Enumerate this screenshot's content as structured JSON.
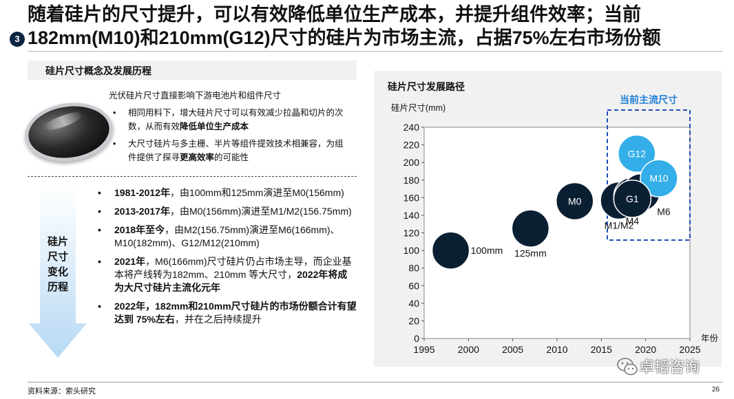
{
  "header": {
    "title_line1": "随着硅片的尺寸提升，可以有效降低单位生产成本，并提升组件效率；当前",
    "title_line2": "182mm(M10)和210mm(G12)尺寸的硅片为市场主流，占据75%左右市场份额",
    "badge": "3"
  },
  "left": {
    "section_title": "硅片尺寸概念及发展历程",
    "intro": "光伏硅片尺寸直接影响下游电池片和组件尺寸",
    "bullets": [
      {
        "pre": "相同用料下，增大硅片尺寸可以有效减少拉晶和切片的次数，从而有效",
        "bold": "降低单位生产成本",
        "post": ""
      },
      {
        "pre": "大尺寸硅片与多主栅、半片等组件提效技术相兼容，为组件提供了探寻",
        "bold": "更高效率",
        "post": "的可能性"
      }
    ],
    "history_label": "硅片尺寸变化历程",
    "history": [
      {
        "bold": "1981-2012年",
        "text": "，由100mm和125mm演进至M0(156mm)",
        "bold2": "",
        "text2": ""
      },
      {
        "bold": "2013-2017年",
        "text": "，由M0(156mm)演进至M1/M2(156.75mm)",
        "bold2": "",
        "text2": ""
      },
      {
        "bold": "2018年至今",
        "text": "，由M2(156.75mm)演进至M6(166mm)、M10(182mm)、G12/M12(210mm)",
        "bold2": "",
        "text2": ""
      },
      {
        "bold": "2021年",
        "text": "，M6(166mm)尺寸硅片仍占市场主导，而企业基本将产线转为182mm、210mm 等大尺寸，",
        "bold2": "2022年将成为大尺寸硅片主流化元年",
        "text2": ""
      },
      {
        "bold": "2022年，182mm和210mm尺寸硅片的市场份额合计有望达到 75%左右",
        "text": "，并在之后持续提升",
        "bold2": "",
        "text2": ""
      }
    ]
  },
  "chart_data": {
    "type": "scatter",
    "title": "硅片尺寸发展路径",
    "ylabel": "硅片尺寸(mm)",
    "xlabel": "年份",
    "xlim": [
      1995,
      2025
    ],
    "ylim": [
      0,
      240
    ],
    "xticks": [
      1995,
      2000,
      2005,
      2010,
      2015,
      2020,
      2025
    ],
    "yticks": [
      0,
      20,
      40,
      60,
      80,
      100,
      120,
      140,
      160,
      180,
      200,
      220,
      240
    ],
    "highlight_label": "当前主流尺寸",
    "points": [
      {
        "label": "100mm",
        "x": 1998,
        "y": 100,
        "label_pos": "right",
        "color": "#0b1f33"
      },
      {
        "label": "125mm",
        "x": 2007,
        "y": 125,
        "label_pos": "below",
        "color": "#0b1f33"
      },
      {
        "label": "M0",
        "x": 2012,
        "y": 156,
        "label_pos": "inside",
        "color": "#0b1f33"
      },
      {
        "label": "M1/M2",
        "x": 2017,
        "y": 156.75,
        "label_pos": "below",
        "color": "#0b1f33"
      },
      {
        "label": "M4",
        "x": 2018.5,
        "y": 161.7,
        "label_pos": "below",
        "color": "#0b1f33"
      },
      {
        "label": "M6",
        "x": 2019.5,
        "y": 166,
        "label_pos": "below-right",
        "color": "#0b1f33"
      },
      {
        "label": "G12",
        "x": 2019,
        "y": 210,
        "label_pos": "inside",
        "color": "#33aee8"
      },
      {
        "label": "M10",
        "x": 2021.5,
        "y": 182,
        "label_pos": "inside",
        "color": "#33aee8"
      },
      {
        "label": "G1",
        "x": 2018.5,
        "y": 158.75,
        "label_pos": "inside",
        "color": "#0b1f33"
      }
    ]
  },
  "footer": {
    "source": "资料来源：索头研究",
    "page": "26",
    "watermark": "卓韬咨询"
  }
}
